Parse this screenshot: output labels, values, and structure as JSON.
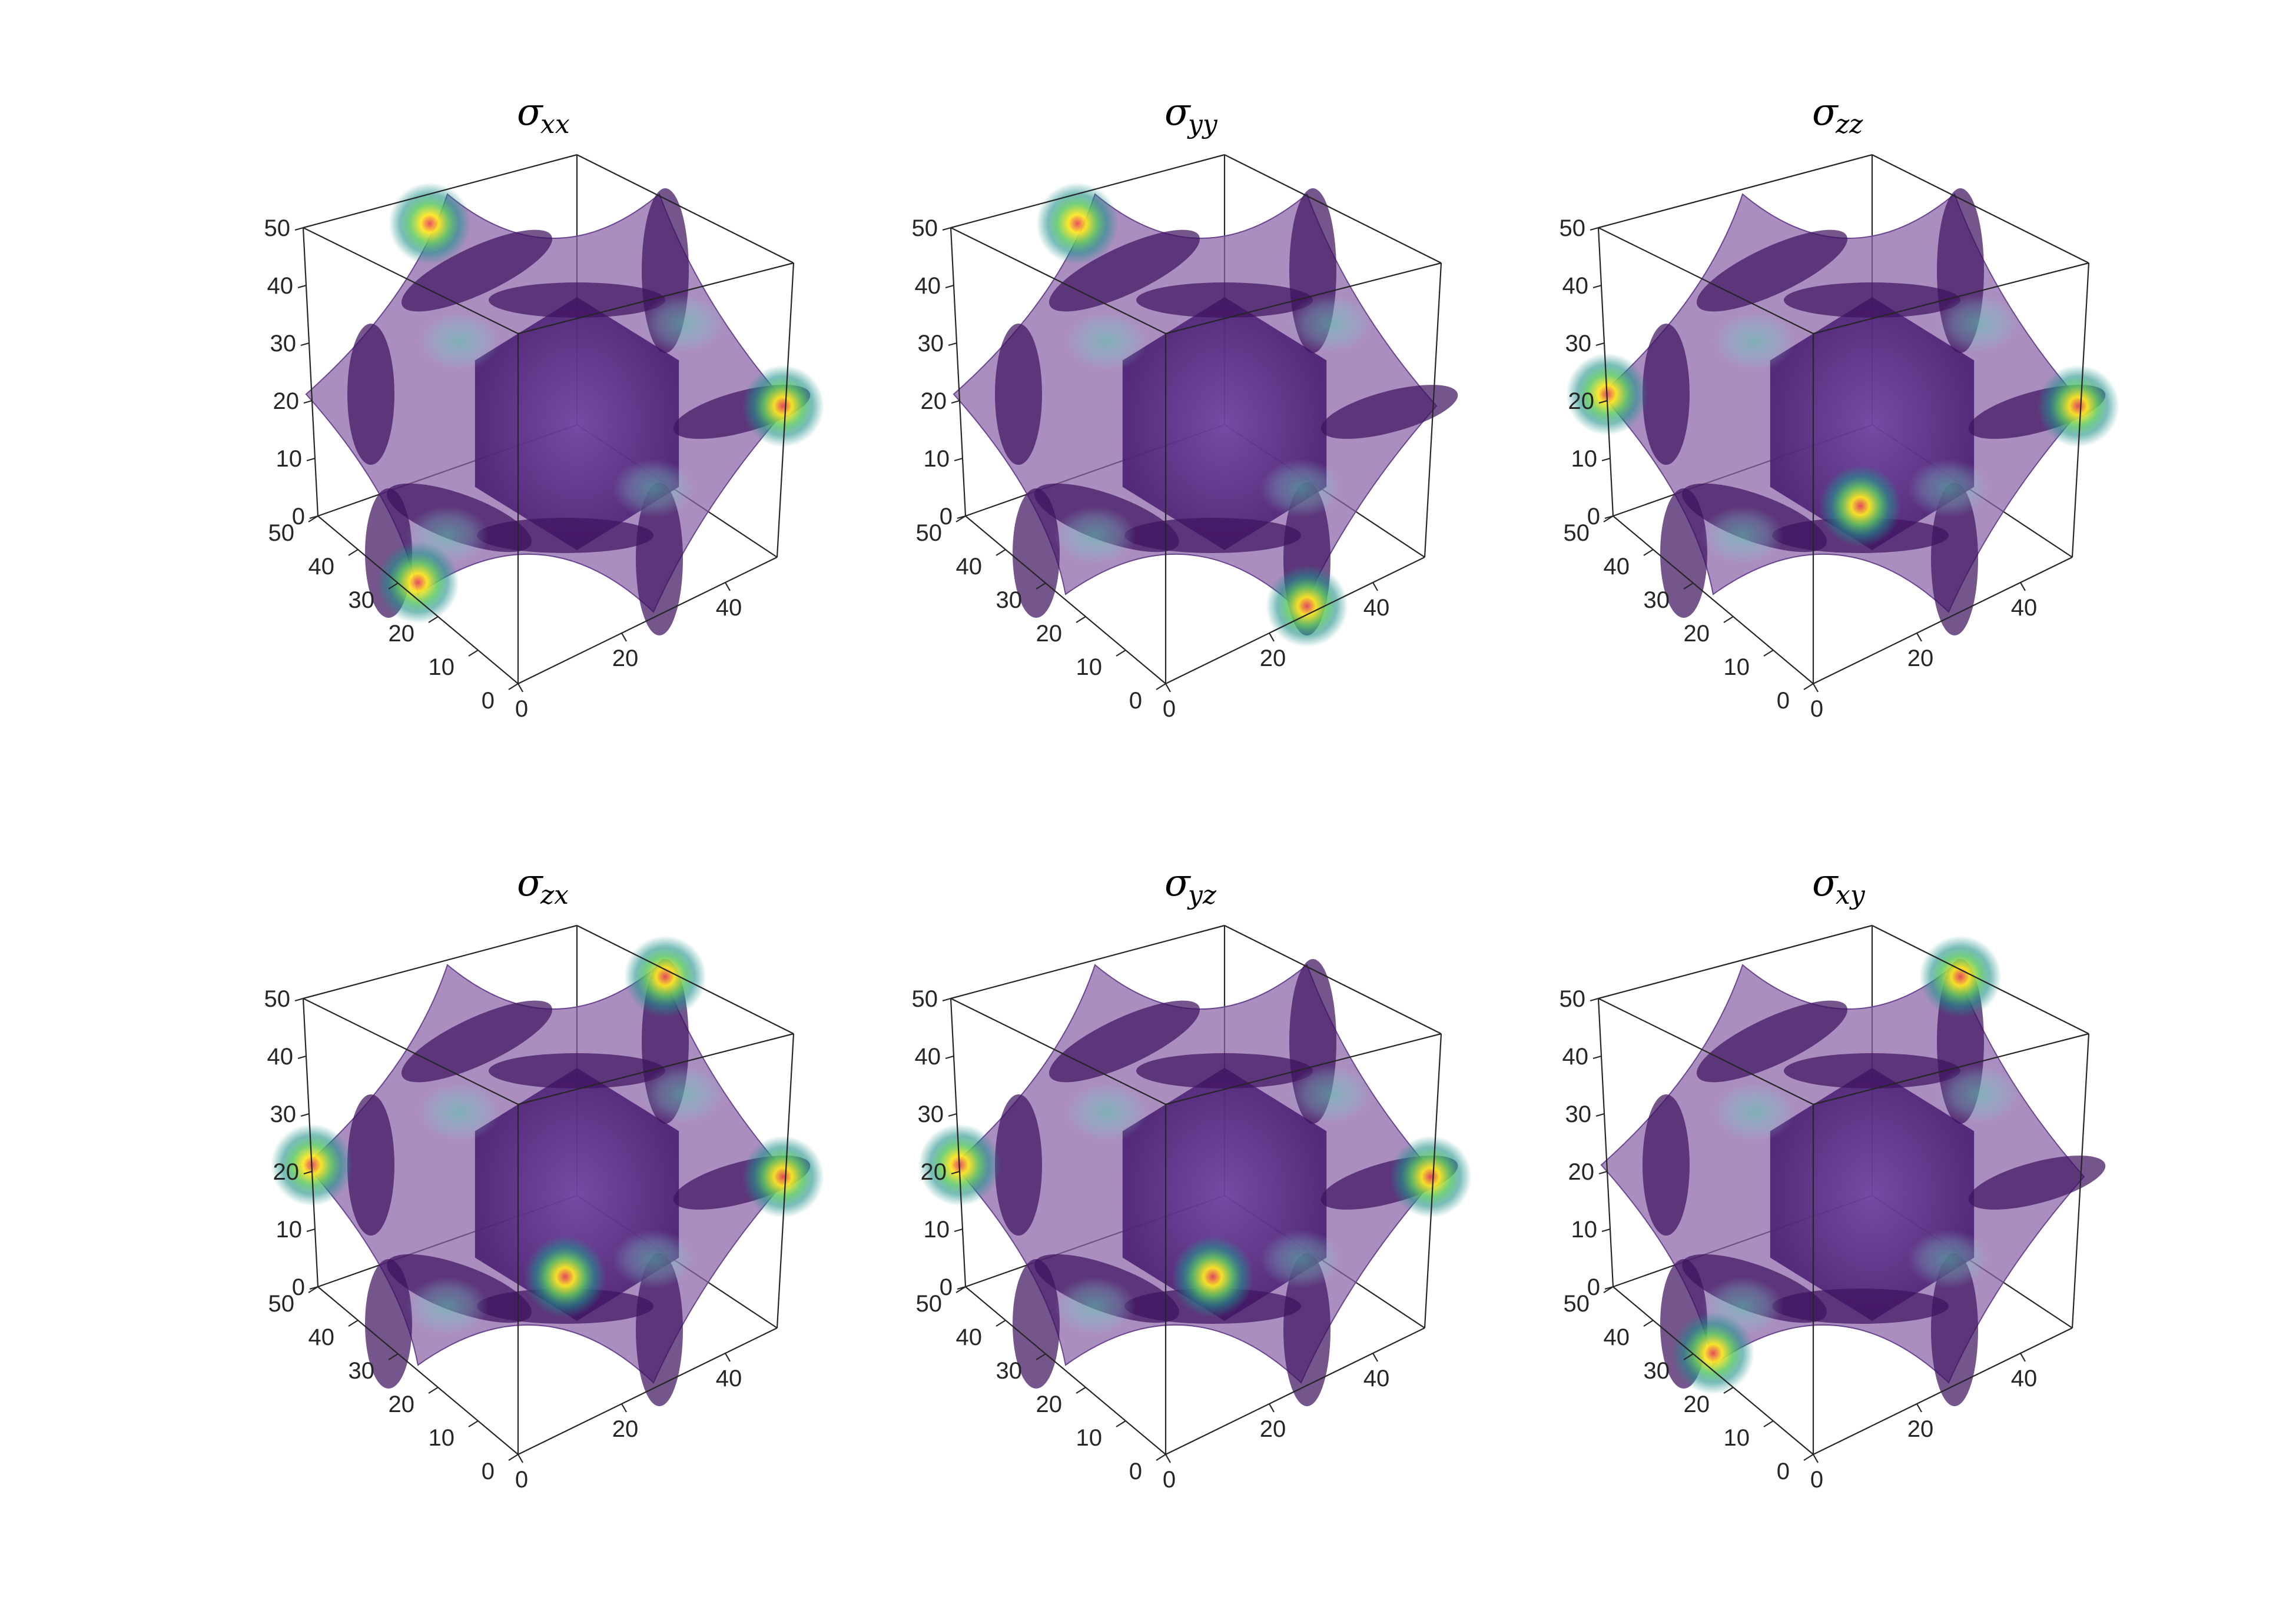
{
  "chart_data": [
    {
      "type": "isosurface",
      "title_symbol": "σ",
      "title_subscript": "xx",
      "axes": {
        "x": {
          "ticks": [
            0,
            10,
            20,
            30,
            40,
            50
          ],
          "range": [
            0,
            50
          ]
        },
        "y": {
          "ticks": [
            0,
            20,
            40
          ],
          "range": [
            0,
            50
          ]
        },
        "z": {
          "ticks": [
            0,
            10,
            20,
            30,
            40,
            50
          ],
          "range": [
            0,
            50
          ]
        }
      },
      "grid": false,
      "colormap": [
        "#440154",
        "#3b528b",
        "#21918c",
        "#5ec962",
        "#fde725",
        "#e8495a"
      ],
      "hotspots": [
        "top-left-arm",
        "bottom-left-arm",
        "right-arm"
      ]
    },
    {
      "type": "isosurface",
      "title_symbol": "σ",
      "title_subscript": "yy",
      "axes": {
        "x": {
          "ticks": [
            0,
            10,
            20,
            30,
            40,
            50
          ],
          "range": [
            0,
            50
          ]
        },
        "y": {
          "ticks": [
            0,
            20,
            40
          ],
          "range": [
            0,
            50
          ]
        },
        "z": {
          "ticks": [
            0,
            10,
            20,
            30,
            40,
            50
          ],
          "range": [
            0,
            50
          ]
        }
      },
      "grid": false,
      "colormap": [
        "#440154",
        "#3b528b",
        "#21918c",
        "#5ec962",
        "#fde725",
        "#e8495a"
      ],
      "hotspots": [
        "top-left-arm",
        "bottom-right-arm"
      ]
    },
    {
      "type": "isosurface",
      "title_symbol": "σ",
      "title_subscript": "zz",
      "axes": {
        "x": {
          "ticks": [
            0,
            10,
            20,
            30,
            40,
            50
          ],
          "range": [
            0,
            50
          ]
        },
        "y": {
          "ticks": [
            0,
            20,
            40
          ],
          "range": [
            0,
            50
          ]
        },
        "z": {
          "ticks": [
            0,
            10,
            20,
            30,
            40,
            50
          ],
          "range": [
            0,
            50
          ]
        }
      },
      "grid": false,
      "colormap": [
        "#440154",
        "#3b528b",
        "#21918c",
        "#5ec962",
        "#fde725",
        "#e8495a"
      ],
      "hotspots": [
        "left-arm",
        "right-arm",
        "bottom-center"
      ]
    },
    {
      "type": "isosurface",
      "title_symbol": "σ",
      "title_subscript": "zx",
      "axes": {
        "x": {
          "ticks": [
            0,
            10,
            20,
            30,
            40,
            50
          ],
          "range": [
            0,
            50
          ]
        },
        "y": {
          "ticks": [
            0,
            20,
            40
          ],
          "range": [
            0,
            50
          ]
        },
        "z": {
          "ticks": [
            0,
            10,
            20,
            30,
            40,
            50
          ],
          "range": [
            0,
            50
          ]
        }
      },
      "grid": false,
      "colormap": [
        "#440154",
        "#3b528b",
        "#21918c",
        "#5ec962",
        "#fde725",
        "#e8495a"
      ],
      "hotspots": [
        "left-arm",
        "right-arm",
        "bottom-center",
        "top-right-arm"
      ]
    },
    {
      "type": "isosurface",
      "title_symbol": "σ",
      "title_subscript": "yz",
      "axes": {
        "x": {
          "ticks": [
            0,
            10,
            20,
            30,
            40,
            50
          ],
          "range": [
            0,
            50
          ]
        },
        "y": {
          "ticks": [
            0,
            20,
            40
          ],
          "range": [
            0,
            50
          ]
        },
        "z": {
          "ticks": [
            0,
            10,
            20,
            30,
            40,
            50
          ],
          "range": [
            0,
            50
          ]
        }
      },
      "grid": false,
      "colormap": [
        "#440154",
        "#3b528b",
        "#21918c",
        "#5ec962",
        "#fde725",
        "#e8495a"
      ],
      "hotspots": [
        "left-arm",
        "right-arm",
        "bottom-center"
      ]
    },
    {
      "type": "isosurface",
      "title_symbol": "σ",
      "title_subscript": "xy",
      "axes": {
        "x": {
          "ticks": [
            0,
            10,
            20,
            30,
            40,
            50
          ],
          "range": [
            0,
            50
          ]
        },
        "y": {
          "ticks": [
            0,
            20,
            40
          ],
          "range": [
            0,
            50
          ]
        },
        "z": {
          "ticks": [
            0,
            10,
            20,
            30,
            40,
            50
          ],
          "range": [
            0,
            50
          ]
        }
      },
      "grid": false,
      "colormap": [
        "#440154",
        "#3b528b",
        "#21918c",
        "#5ec962",
        "#fde725",
        "#e8495a"
      ],
      "hotspots": [
        "top-right-arm",
        "bottom-left-arm"
      ]
    }
  ]
}
